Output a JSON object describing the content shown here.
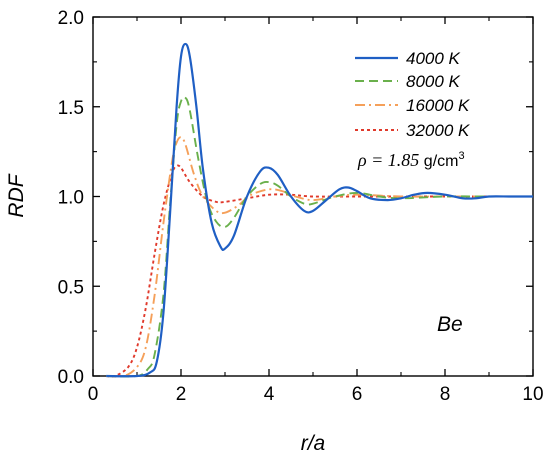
{
  "chart_data": {
    "type": "line",
    "xlabel": "r/a",
    "ylabel": "RDF",
    "xlim": [
      0,
      10
    ],
    "ylim": [
      0,
      2.0
    ],
    "x_ticks": [
      0,
      2,
      4,
      6,
      8,
      10
    ],
    "y_ticks": [
      0.0,
      0.5,
      1.0,
      1.5,
      2.0
    ],
    "x_tick_labels": [
      "0",
      "2",
      "4",
      "6",
      "8",
      "10"
    ],
    "y_tick_labels": [
      "0.0",
      "0.5",
      "1.0",
      "1.5",
      "2.0"
    ],
    "grid": false,
    "legend_position": "top-right",
    "annotations": {
      "density_prefix": "ρ = 1.85",
      "density_unit": "g/cm",
      "density_exponent": "3",
      "element": "Be"
    },
    "series": [
      {
        "name": "4000 K",
        "color": "#1f5fc4",
        "dash": "solid",
        "x": [
          0.3,
          1.0,
          1.3,
          1.45,
          1.6,
          1.75,
          1.9,
          2.0,
          2.1,
          2.2,
          2.35,
          2.5,
          2.7,
          2.9,
          3.0,
          3.2,
          3.5,
          3.8,
          4.0,
          4.2,
          4.5,
          4.8,
          5.0,
          5.3,
          5.6,
          5.8,
          6.0,
          6.3,
          6.7,
          7.0,
          7.3,
          7.6,
          8.0,
          8.4,
          8.7,
          9.0,
          9.5,
          10.0
        ],
        "y": [
          0.0,
          0.0,
          0.02,
          0.08,
          0.35,
          0.9,
          1.5,
          1.78,
          1.85,
          1.78,
          1.5,
          1.15,
          0.85,
          0.72,
          0.71,
          0.78,
          1.0,
          1.14,
          1.16,
          1.12,
          1.0,
          0.92,
          0.92,
          0.98,
          1.04,
          1.05,
          1.03,
          0.99,
          0.98,
          0.99,
          1.01,
          1.02,
          1.01,
          0.99,
          0.99,
          1.0,
          1.0,
          1.0
        ]
      },
      {
        "name": "8000 K",
        "color": "#6ab04c",
        "dash": "dashed",
        "x": [
          0.3,
          1.0,
          1.25,
          1.4,
          1.6,
          1.75,
          1.9,
          2.0,
          2.1,
          2.2,
          2.4,
          2.6,
          2.8,
          3.0,
          3.2,
          3.5,
          3.8,
          4.0,
          4.2,
          4.5,
          4.8,
          5.0,
          5.5,
          6.0,
          6.5,
          7.0,
          8.0,
          9.0,
          10.0
        ],
        "y": [
          0.0,
          0.0,
          0.04,
          0.12,
          0.45,
          0.95,
          1.4,
          1.53,
          1.55,
          1.48,
          1.2,
          0.97,
          0.86,
          0.83,
          0.88,
          1.0,
          1.07,
          1.08,
          1.06,
          1.0,
          0.96,
          0.96,
          1.0,
          1.02,
          1.0,
          0.99,
          1.0,
          1.0,
          1.0
        ]
      },
      {
        "name": "16000 K",
        "color": "#f5a05a",
        "dash": "dashdot",
        "x": [
          0.3,
          0.7,
          1.0,
          1.2,
          1.4,
          1.6,
          1.8,
          1.9,
          2.0,
          2.1,
          2.3,
          2.5,
          2.8,
          3.0,
          3.3,
          3.6,
          4.0,
          4.3,
          4.6,
          5.0,
          5.5,
          6.0,
          7.0,
          8.0,
          9.0,
          10.0
        ],
        "y": [
          0.0,
          0.0,
          0.05,
          0.16,
          0.45,
          0.85,
          1.2,
          1.3,
          1.33,
          1.29,
          1.12,
          1.0,
          0.92,
          0.91,
          0.95,
          1.01,
          1.04,
          1.03,
          1.0,
          0.98,
          1.0,
          1.01,
          1.0,
          1.0,
          1.0,
          1.0
        ]
      },
      {
        "name": "32000 K",
        "color": "#e0392b",
        "dash": "dotted",
        "x": [
          0.3,
          0.5,
          0.8,
          1.0,
          1.2,
          1.4,
          1.6,
          1.8,
          1.9,
          2.0,
          2.2,
          2.5,
          2.8,
          3.0,
          3.5,
          4.0,
          4.5,
          5.0,
          6.0,
          7.0,
          8.0,
          9.0,
          10.0
        ],
        "y": [
          0.0,
          0.0,
          0.05,
          0.16,
          0.38,
          0.68,
          0.95,
          1.13,
          1.17,
          1.16,
          1.08,
          1.0,
          0.97,
          0.97,
          0.99,
          1.01,
          1.01,
          1.0,
          1.0,
          1.0,
          1.0,
          1.0,
          1.0
        ]
      }
    ]
  }
}
